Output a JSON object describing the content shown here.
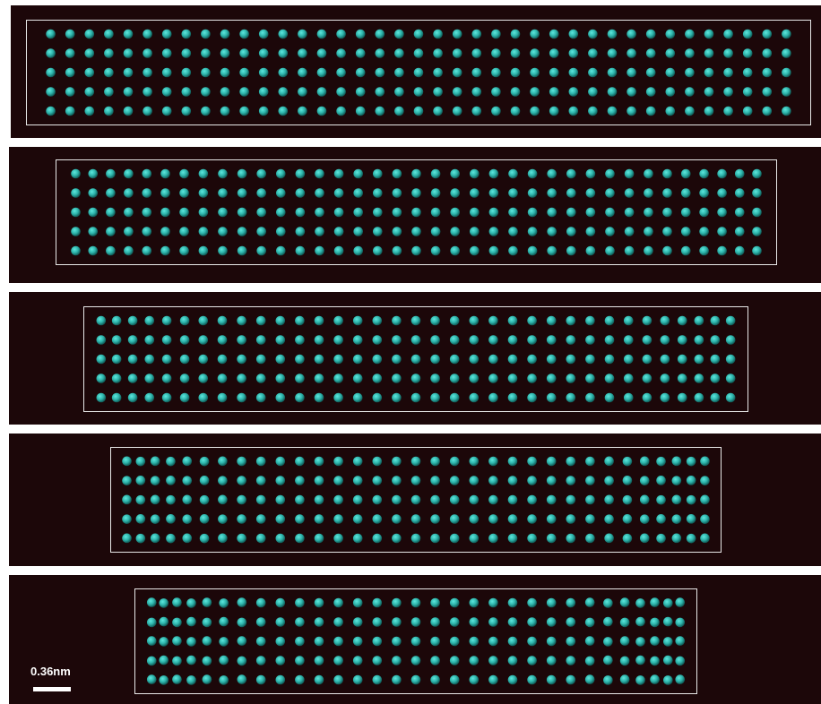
{
  "scale_bar": {
    "label": "0.36nm"
  },
  "colors": {
    "background": "#1c0709",
    "atom_core": "#5fe8de",
    "atom_mid": "#2db3aa",
    "atom_edge": "#0f5a56",
    "frame": "#e8e8e8"
  },
  "panels": [
    {
      "name": "panel-1",
      "rows": 5,
      "end_compression": 0.0
    },
    {
      "name": "panel-2",
      "rows": 5,
      "end_compression": 0.25
    },
    {
      "name": "panel-3",
      "rows": 5,
      "end_compression": 0.45
    },
    {
      "name": "panel-4",
      "rows": 5,
      "end_compression": 0.65
    },
    {
      "name": "panel-5",
      "rows": 5,
      "end_compression": 0.85
    }
  ]
}
